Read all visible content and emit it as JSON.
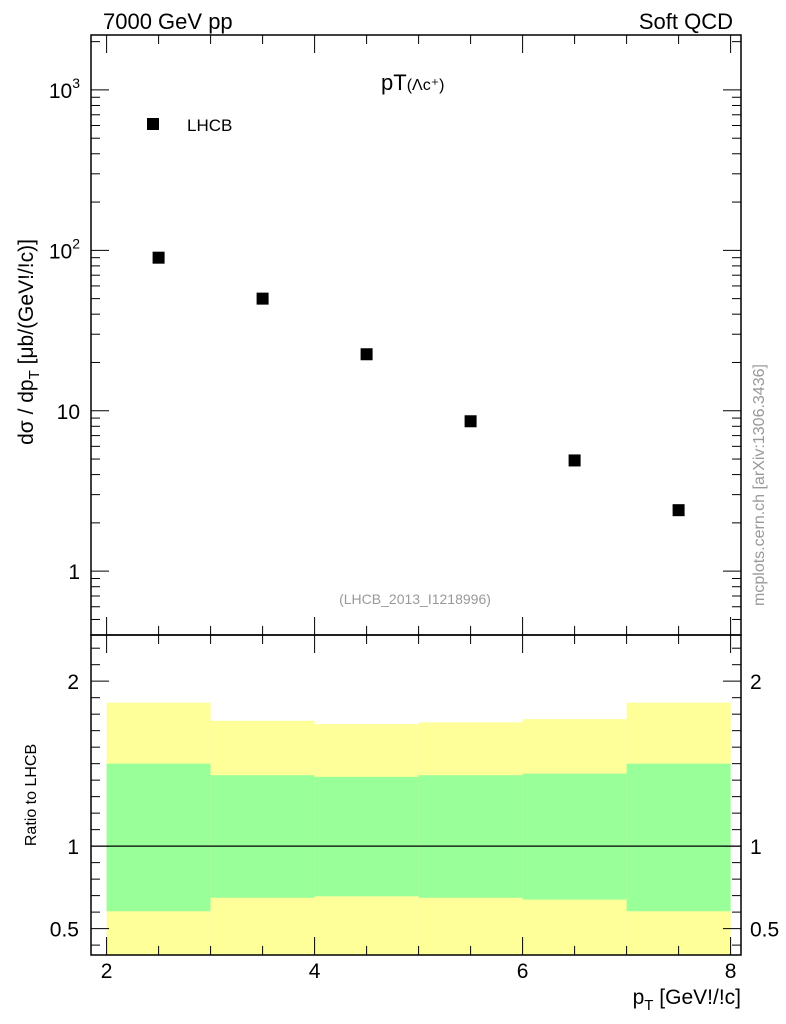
{
  "header": {
    "left": "7000 GeV pp",
    "right": "Soft QCD"
  },
  "watermark": "mcplots.cern.ch [arXiv:1306.3436]",
  "chart_data": [
    {
      "type": "scatter",
      "title_main": "pT",
      "title_sub": "(Λc⁺)",
      "ylabel": "dσ / dp_T [μb/(GeV!/!c)]",
      "yscale": "log",
      "ylim": [
        0.4,
        2200
      ],
      "xlim": [
        1.85,
        8.1
      ],
      "yticks": [
        {
          "value": 1,
          "label": "1"
        },
        {
          "value": 10,
          "label": "10"
        },
        {
          "value": 100,
          "base": "10",
          "exp": "2"
        },
        {
          "value": 1000,
          "base": "10",
          "exp": "3"
        }
      ],
      "legend": {
        "label": "LHCB",
        "position": "top-left"
      },
      "source_label": "(LHCB_2013_I1218996)",
      "series": [
        {
          "name": "LHCB",
          "color": "#000000",
          "points": [
            {
              "x": 2.5,
              "y": 90
            },
            {
              "x": 3.5,
              "y": 50
            },
            {
              "x": 4.5,
              "y": 22.5
            },
            {
              "x": 5.5,
              "y": 8.6
            },
            {
              "x": 6.5,
              "y": 4.9
            },
            {
              "x": 7.5,
              "y": 2.4
            }
          ]
        }
      ]
    },
    {
      "type": "area",
      "ylabel": "Ratio to LHCB",
      "xlabel": "p_T [GeV!/!c]",
      "xlim": [
        1.85,
        8.1
      ],
      "ylim": [
        0.34,
        2.28
      ],
      "xticks": [
        {
          "value": 2,
          "label": "2"
        },
        {
          "value": 4,
          "label": "4"
        },
        {
          "value": 6,
          "label": "6"
        },
        {
          "value": 8,
          "label": "8"
        }
      ],
      "yticks": [
        {
          "value": 0.5,
          "label": "0.5"
        },
        {
          "value": 1,
          "label": "1"
        },
        {
          "value": 2,
          "label": "2"
        }
      ],
      "reference_line": 1,
      "colors": {
        "inner_band": "#99ff99",
        "outer_band": "#ffff99"
      },
      "bins": [
        {
          "x_low": 2,
          "x_high": 3,
          "inner_low": 0.605,
          "inner_high": 1.5,
          "outer_low": 0.34,
          "outer_high": 1.87
        },
        {
          "x_low": 3,
          "x_high": 4,
          "inner_low": 0.687,
          "inner_high": 1.43,
          "outer_low": 0.34,
          "outer_high": 1.76
        },
        {
          "x_low": 4,
          "x_high": 5,
          "inner_low": 0.696,
          "inner_high": 1.42,
          "outer_low": 0.34,
          "outer_high": 1.74
        },
        {
          "x_low": 5,
          "x_high": 6,
          "inner_low": 0.687,
          "inner_high": 1.43,
          "outer_low": 0.34,
          "outer_high": 1.75
        },
        {
          "x_low": 6,
          "x_high": 7,
          "inner_low": 0.676,
          "inner_high": 1.44,
          "outer_low": 0.34,
          "outer_high": 1.77
        },
        {
          "x_low": 7,
          "x_high": 8,
          "inner_low": 0.605,
          "inner_high": 1.5,
          "outer_low": 0.34,
          "outer_high": 1.87
        }
      ]
    }
  ]
}
